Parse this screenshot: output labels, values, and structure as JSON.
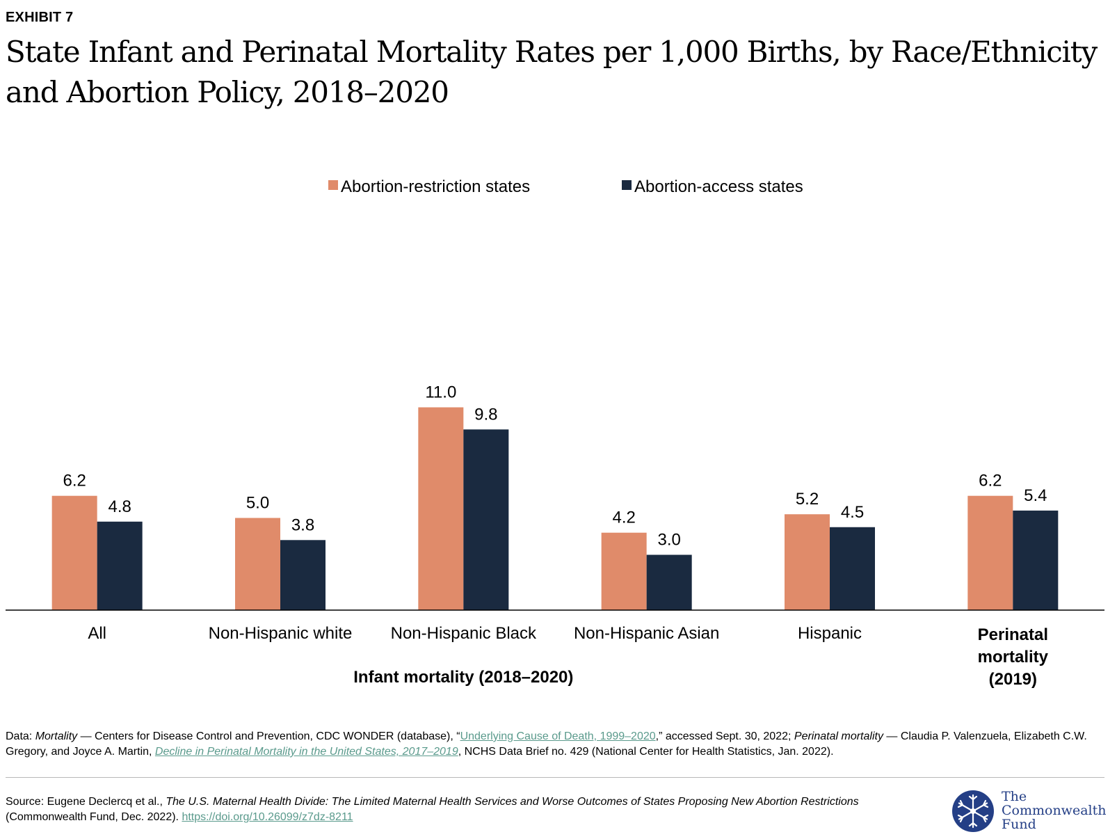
{
  "header": {
    "exhibit": "EXHIBIT 7",
    "title": "State Infant and Perinatal Mortality Rates per 1,000 Births, by Race/Ethnicity and Abortion Policy, 2018–2020"
  },
  "chart_data": {
    "type": "bar",
    "categories": [
      "All",
      "Non-Hispanic white",
      "Non-Hispanic Black",
      "Non-Hispanic Asian",
      "Hispanic",
      "Perinatal mortality (2019)"
    ],
    "category_groups": [
      {
        "label": "Infant mortality (2018–2020)",
        "categories": [
          "All",
          "Non-Hispanic white",
          "Non-Hispanic Black",
          "Non-Hispanic Asian",
          "Hispanic"
        ]
      }
    ],
    "series": [
      {
        "name": "Abortion-restriction states",
        "color": "#e08b6a",
        "values": [
          6.2,
          5.0,
          11.0,
          4.2,
          5.2,
          6.2
        ]
      },
      {
        "name": "Abortion-access states",
        "color": "#1a2a40",
        "values": [
          4.8,
          3.8,
          9.8,
          3.0,
          4.5,
          5.4
        ]
      }
    ],
    "value_labels": [
      "6.2",
      "5.0",
      "11.0",
      "4.2",
      "5.2",
      "6.2",
      "4.8",
      "3.8",
      "9.8",
      "3.0",
      "4.5",
      "5.4"
    ],
    "ylim": [
      0,
      12
    ],
    "legend_position": "top-center",
    "grid": false
  },
  "notes": {
    "data_prefix": "Data: ",
    "mortality_label": "Mortality",
    "mortality_text_1": " — Centers for Disease Control and Prevention, CDC WONDER (database), “",
    "mortality_link": "Underlying Cause of Death, 1999–2020",
    "mortality_text_2": ",” accessed Sept. 30, 2022; ",
    "perinatal_label": "Perinatal mortality",
    "perinatal_text_1": " — Claudia P. Valenzuela, Elizabeth C.W. Gregory, and Joyce A. Martin, ",
    "perinatal_link": "Decline in Perinatal Mortality in the United States, 2017–2019",
    "perinatal_text_2": ", NCHS Data Brief no. 429 (National Center for Health Statistics, Jan. 2022)."
  },
  "source": {
    "prefix": "Source: Eugene Declercq et al., ",
    "title": "The U.S. Maternal Health Divide: The Limited Maternal Health Services and Worse Outcomes of States Proposing New Abortion Restrictions",
    "suffix": " (Commonwealth Fund, Dec. 2022). ",
    "link": "https://doi.org/10.26099/z7dz-8211"
  },
  "logo": {
    "line1": "The",
    "line2": "Commonwealth",
    "line3": "Fund",
    "color": "#243f86"
  }
}
